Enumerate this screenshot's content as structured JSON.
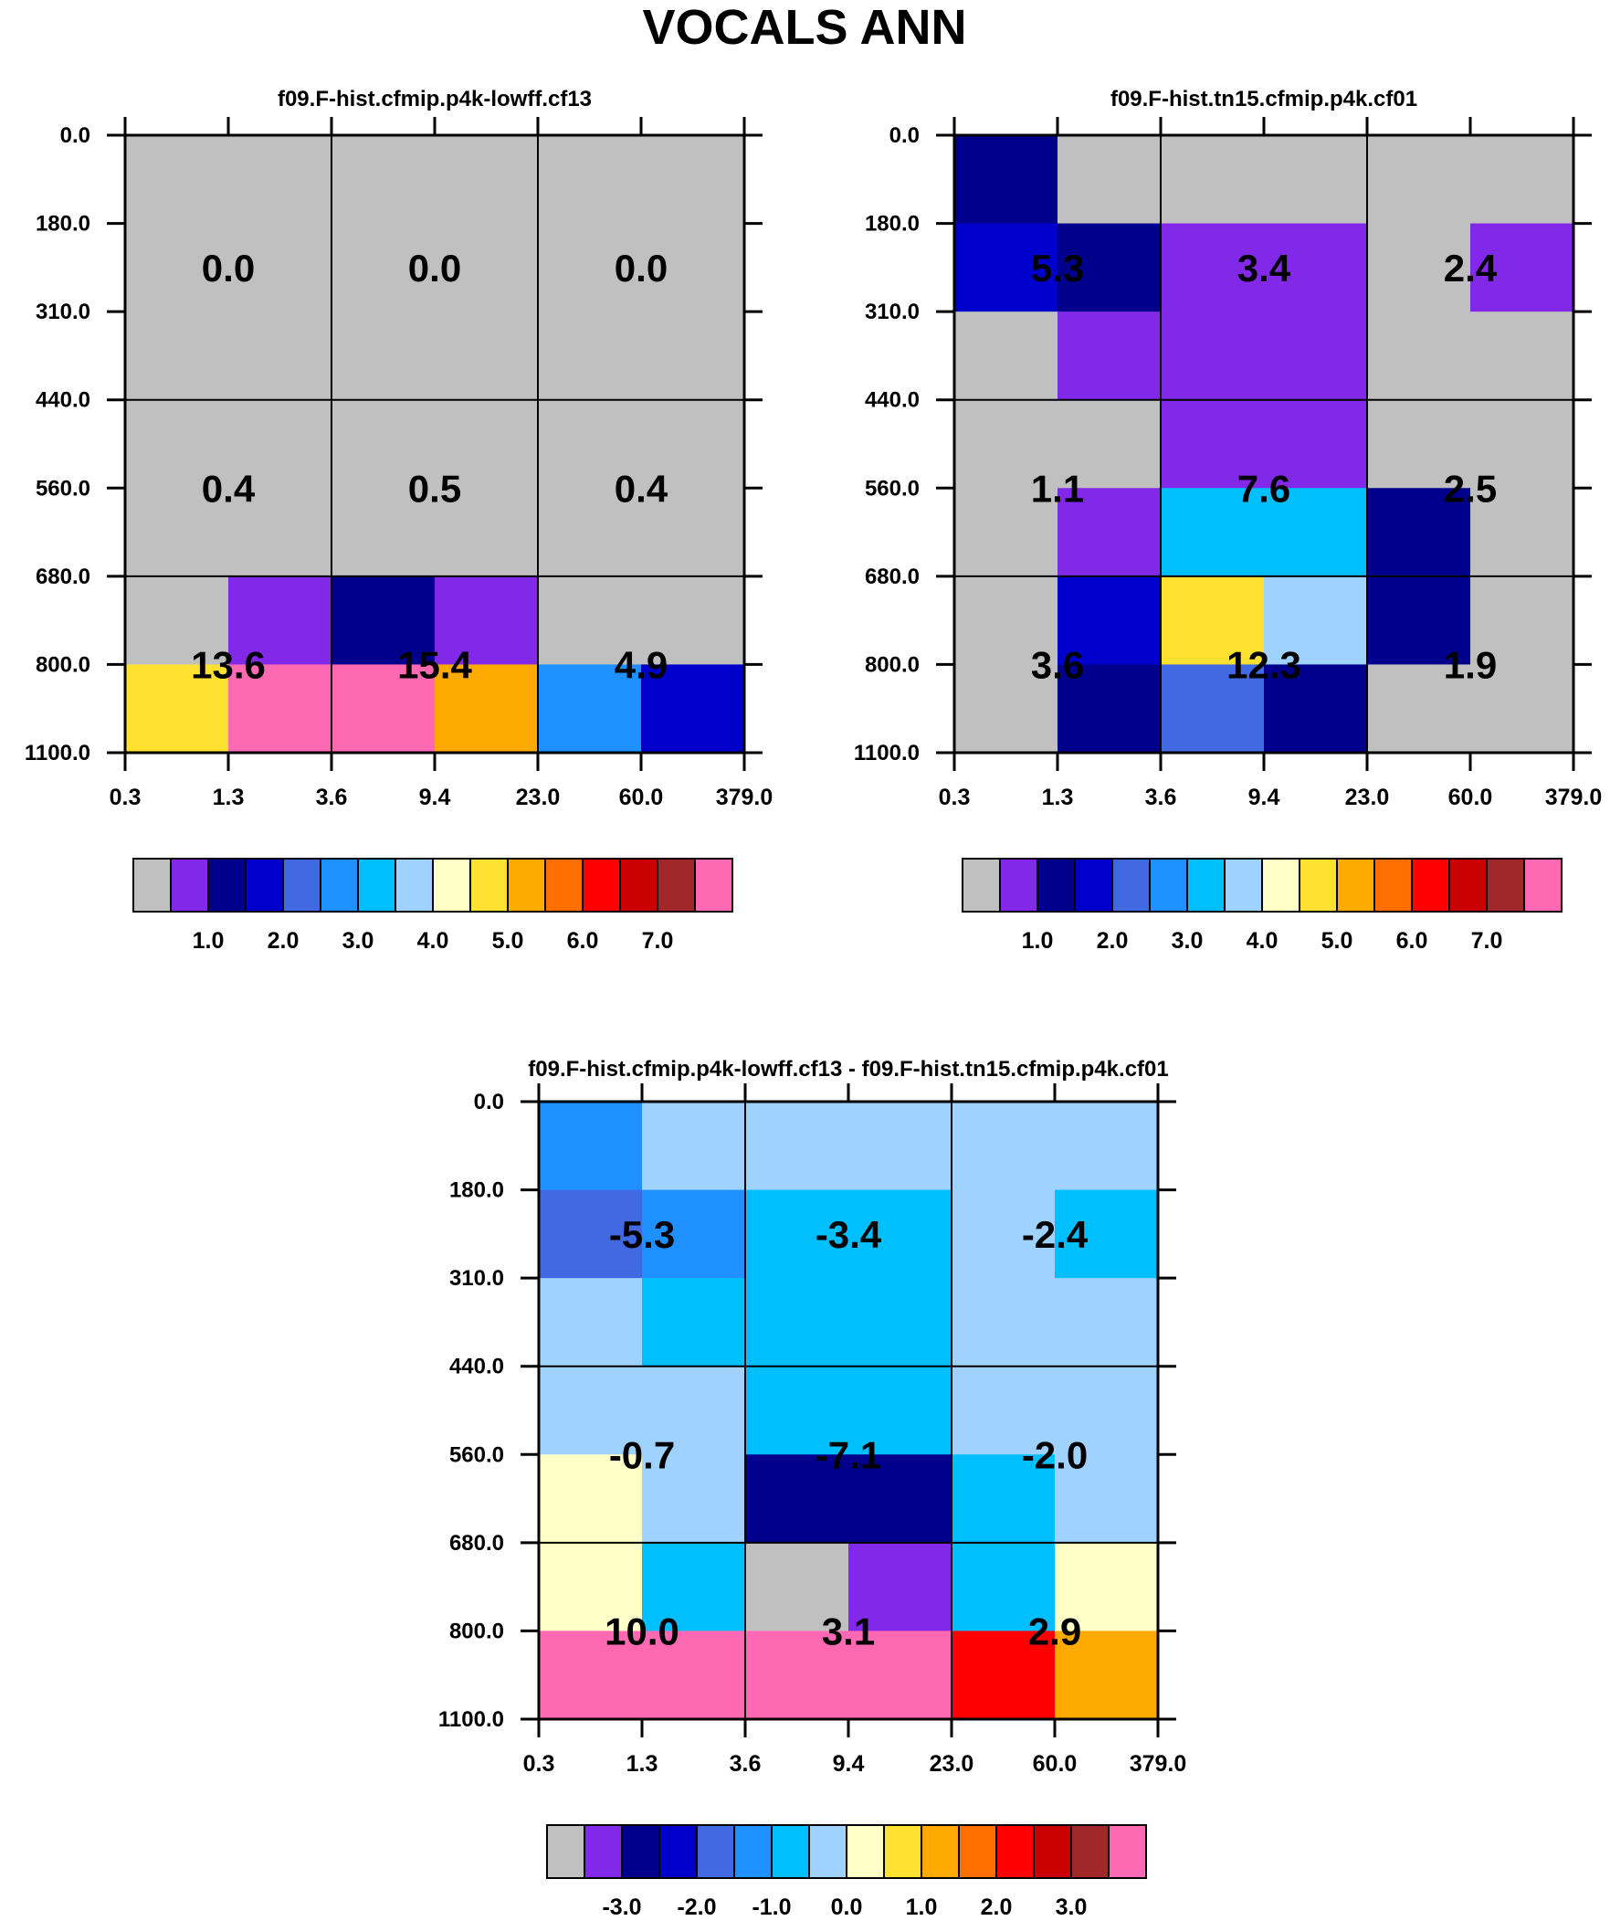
{
  "title": "VOCALS ANN",
  "x_ticks": [
    "0.3",
    "1.3",
    "3.6",
    "9.4",
    "23.0",
    "60.0",
    "379.0"
  ],
  "y_ticks": [
    "0.0",
    "180.0",
    "310.0",
    "440.0",
    "560.0",
    "680.0",
    "800.0",
    "1100.0"
  ],
  "palette": [
    "#c0c0c0",
    "#8228e8",
    "#00008c",
    "#0000cc",
    "#4169e1",
    "#1e90ff",
    "#00bfff",
    "#a0d2ff",
    "#ffffc8",
    "#ffe132",
    "#ffaa00",
    "#ff6e00",
    "#ff0000",
    "#c80000",
    "#a02828",
    "#ff69b4"
  ],
  "chart_data": [
    {
      "type": "heatmap",
      "title": "f09.F-hist.cfmip.p4k-lowff.cf13",
      "x_edges": [
        0.3,
        1.3,
        3.6,
        9.4,
        23.0,
        60.0,
        379.0
      ],
      "y_edges": [
        0,
        180,
        310,
        440,
        560,
        680,
        800,
        1100
      ],
      "cell_colors": [
        [
          0,
          0,
          0,
          0,
          0,
          0
        ],
        [
          0,
          0,
          0,
          0,
          0,
          0
        ],
        [
          0,
          0,
          0,
          0,
          0,
          0
        ],
        [
          0,
          0,
          0,
          0,
          0,
          0
        ],
        [
          0,
          0,
          0,
          0,
          0,
          0
        ],
        [
          0,
          1,
          2,
          1,
          0,
          0
        ],
        [
          9,
          15,
          15,
          10,
          5,
          3
        ]
      ],
      "labels": [
        {
          "text": "0.0",
          "x": 1.3,
          "y": 245
        },
        {
          "text": "0.0",
          "x": 9.4,
          "y": 245
        },
        {
          "text": "0.0",
          "x": 60.0,
          "y": 245
        },
        {
          "text": "0.4",
          "x": 1.3,
          "y": 560
        },
        {
          "text": "0.5",
          "x": 9.4,
          "y": 560
        },
        {
          "text": "0.4",
          "x": 60.0,
          "y": 560
        },
        {
          "text": "13.6",
          "x": 1.3,
          "y": 800
        },
        {
          "text": "15.4",
          "x": 9.4,
          "y": 800
        },
        {
          "text": "4.9",
          "x": 60.0,
          "y": 800
        }
      ],
      "colorbar_labels": [
        "1.0",
        "2.0",
        "3.0",
        "4.0",
        "5.0",
        "6.0",
        "7.0"
      ]
    },
    {
      "type": "heatmap",
      "title": "f09.F-hist.tn15.cfmip.p4k.cf01",
      "x_edges": [
        0.3,
        1.3,
        3.6,
        9.4,
        23.0,
        60.0,
        379.0
      ],
      "y_edges": [
        0,
        180,
        310,
        440,
        560,
        680,
        800,
        1100
      ],
      "cell_colors": [
        [
          2,
          0,
          0,
          0,
          0,
          0
        ],
        [
          3,
          2,
          1,
          1,
          0,
          1
        ],
        [
          0,
          1,
          1,
          1,
          0,
          0
        ],
        [
          0,
          0,
          1,
          1,
          0,
          0
        ],
        [
          0,
          1,
          6,
          6,
          2,
          0
        ],
        [
          0,
          3,
          9,
          7,
          2,
          0
        ],
        [
          0,
          2,
          4,
          2,
          0,
          0
        ]
      ],
      "labels": [
        {
          "text": "5.3",
          "x": 1.3,
          "y": 245
        },
        {
          "text": "3.4",
          "x": 9.4,
          "y": 245
        },
        {
          "text": "2.4",
          "x": 60.0,
          "y": 245
        },
        {
          "text": "1.1",
          "x": 1.3,
          "y": 560
        },
        {
          "text": "7.6",
          "x": 9.4,
          "y": 560
        },
        {
          "text": "2.5",
          "x": 60.0,
          "y": 560
        },
        {
          "text": "3.6",
          "x": 1.3,
          "y": 800
        },
        {
          "text": "12.3",
          "x": 9.4,
          "y": 800
        },
        {
          "text": "1.9",
          "x": 60.0,
          "y": 800
        }
      ],
      "colorbar_labels": [
        "1.0",
        "2.0",
        "3.0",
        "4.0",
        "5.0",
        "6.0",
        "7.0"
      ]
    },
    {
      "type": "heatmap",
      "title": "f09.F-hist.cfmip.p4k-lowff.cf13 - f09.F-hist.tn15.cfmip.p4k.cf01",
      "x_edges": [
        0.3,
        1.3,
        3.6,
        9.4,
        23.0,
        60.0,
        379.0
      ],
      "y_edges": [
        0,
        180,
        310,
        440,
        560,
        680,
        800,
        1100
      ],
      "cell_colors": [
        [
          5,
          7,
          7,
          7,
          7,
          7
        ],
        [
          4,
          5,
          6,
          6,
          7,
          6
        ],
        [
          7,
          6,
          6,
          6,
          7,
          7
        ],
        [
          7,
          7,
          6,
          6,
          7,
          7
        ],
        [
          8,
          7,
          2,
          2,
          6,
          7
        ],
        [
          8,
          6,
          0,
          1,
          6,
          8
        ],
        [
          15,
          15,
          15,
          15,
          12,
          10
        ]
      ],
      "labels": [
        {
          "text": "-5.3",
          "x": 1.3,
          "y": 245
        },
        {
          "text": "-3.4",
          "x": 9.4,
          "y": 245
        },
        {
          "text": "-2.4",
          "x": 60.0,
          "y": 245
        },
        {
          "text": "-0.7",
          "x": 1.3,
          "y": 560
        },
        {
          "text": "-7.1",
          "x": 9.4,
          "y": 560
        },
        {
          "text": "-2.0",
          "x": 60.0,
          "y": 560
        },
        {
          "text": "10.0",
          "x": 1.3,
          "y": 800
        },
        {
          "text": "3.1",
          "x": 9.4,
          "y": 800
        },
        {
          "text": "2.9",
          "x": 60.0,
          "y": 800
        }
      ],
      "colorbar_labels": [
        "-3.0",
        "-2.0",
        "-1.0",
        "0.0",
        "1.0",
        "2.0",
        "3.0"
      ]
    }
  ]
}
